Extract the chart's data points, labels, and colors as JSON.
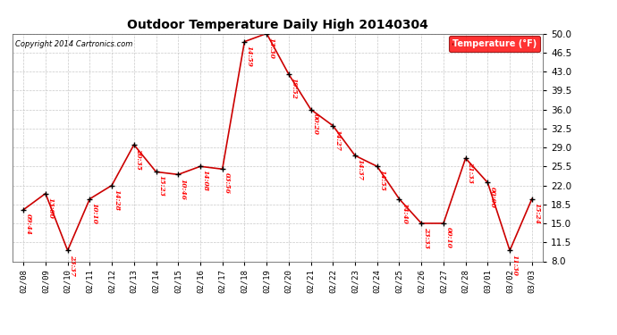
{
  "title": "Outdoor Temperature Daily High 20140304",
  "copyright": "Copyright 2014 Cartronics.com",
  "legend_label": "Temperature (°F)",
  "ylim": [
    8.0,
    50.0
  ],
  "yticks": [
    8.0,
    11.5,
    15.0,
    18.5,
    22.0,
    25.5,
    29.0,
    32.5,
    36.0,
    39.5,
    43.0,
    46.5,
    50.0
  ],
  "background_color": "#ffffff",
  "line_color": "#cc0000",
  "marker_color": "#000000",
  "border_color": "#000000",
  "data": [
    {
      "date": "02/08",
      "value": 17.5,
      "time": "09:44"
    },
    {
      "date": "02/09",
      "value": 20.5,
      "time": "13:00"
    },
    {
      "date": "02/10",
      "value": 10.0,
      "time": "23:37"
    },
    {
      "date": "02/11",
      "value": 19.5,
      "time": "10:10"
    },
    {
      "date": "02/12",
      "value": 22.0,
      "time": "14:28"
    },
    {
      "date": "02/13",
      "value": 29.5,
      "time": "20:35"
    },
    {
      "date": "02/14",
      "value": 24.5,
      "time": "15:23"
    },
    {
      "date": "02/15",
      "value": 24.0,
      "time": "10:46"
    },
    {
      "date": "02/16",
      "value": 25.5,
      "time": "14:08"
    },
    {
      "date": "02/17",
      "value": 25.0,
      "time": "03:56"
    },
    {
      "date": "02/18",
      "value": 48.5,
      "time": "14:59"
    },
    {
      "date": "02/19",
      "value": 50.0,
      "time": "13:30"
    },
    {
      "date": "02/20",
      "value": 42.5,
      "time": "19:52"
    },
    {
      "date": "02/21",
      "value": 36.0,
      "time": "00:20"
    },
    {
      "date": "02/22",
      "value": 33.0,
      "time": "14:27"
    },
    {
      "date": "02/23",
      "value": 27.5,
      "time": "14:37"
    },
    {
      "date": "02/24",
      "value": 25.5,
      "time": "14:55"
    },
    {
      "date": "02/25",
      "value": 19.5,
      "time": "14:40"
    },
    {
      "date": "02/26",
      "value": 15.0,
      "time": "23:33"
    },
    {
      "date": "02/27",
      "value": 15.0,
      "time": "00:10"
    },
    {
      "date": "02/28",
      "value": 27.0,
      "time": "21:33"
    },
    {
      "date": "03/01",
      "value": 22.5,
      "time": "00:00"
    },
    {
      "date": "03/02",
      "value": 10.0,
      "time": "11:30"
    },
    {
      "date": "03/03",
      "value": 19.5,
      "time": "15:24"
    }
  ]
}
